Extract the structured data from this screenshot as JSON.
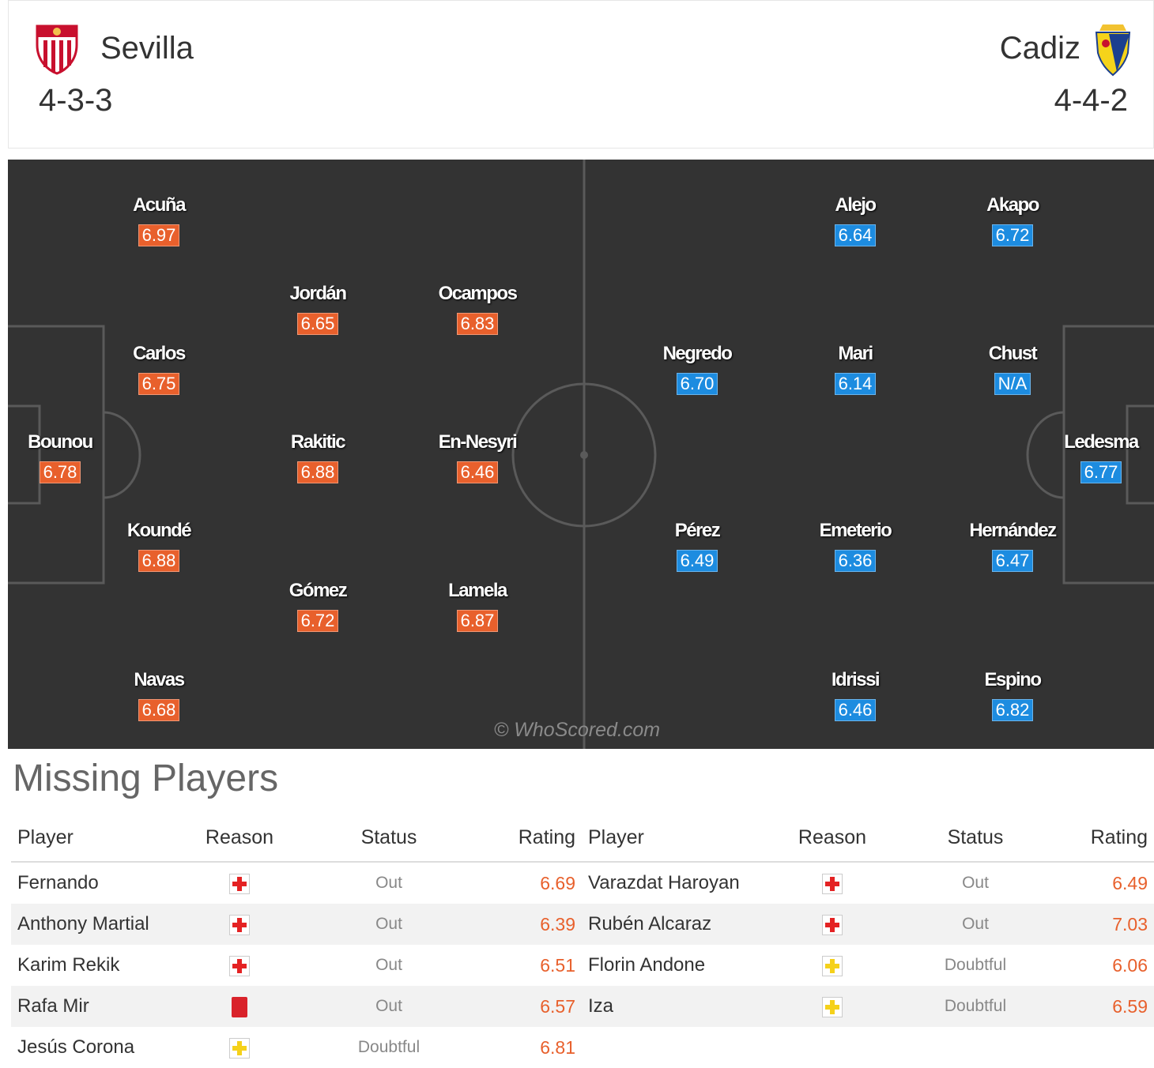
{
  "header": {
    "home": {
      "name": "Sevilla",
      "formation": "4-3-3",
      "crest_icon": "sevilla-crest-icon"
    },
    "away": {
      "name": "Cadiz",
      "formation": "4-4-2",
      "crest_icon": "cadiz-crest-icon"
    }
  },
  "pitch": {
    "watermark": "© WhoScored.com",
    "home_color": "#e8602c",
    "away_color": "#1d8ce0",
    "home_players": [
      {
        "name": "Acuña",
        "rating": "6.97"
      },
      {
        "name": "Jordán",
        "rating": "6.65"
      },
      {
        "name": "Ocampos",
        "rating": "6.83"
      },
      {
        "name": "Carlos",
        "rating": "6.75"
      },
      {
        "name": "Bounou",
        "rating": "6.78"
      },
      {
        "name": "Rakitic",
        "rating": "6.88"
      },
      {
        "name": "En-Nesyri",
        "rating": "6.46"
      },
      {
        "name": "Koundé",
        "rating": "6.88"
      },
      {
        "name": "Gómez",
        "rating": "6.72"
      },
      {
        "name": "Lamela",
        "rating": "6.87"
      },
      {
        "name": "Navas",
        "rating": "6.68"
      }
    ],
    "away_players": [
      {
        "name": "Alejo",
        "rating": "6.64"
      },
      {
        "name": "Akapo",
        "rating": "6.72"
      },
      {
        "name": "Negredo",
        "rating": "6.70"
      },
      {
        "name": "Mari",
        "rating": "6.14"
      },
      {
        "name": "Chust",
        "rating": "N/A"
      },
      {
        "name": "Ledesma",
        "rating": "6.77"
      },
      {
        "name": "Pérez",
        "rating": "6.49"
      },
      {
        "name": "Emeterio",
        "rating": "6.36"
      },
      {
        "name": "Hernández",
        "rating": "6.47"
      },
      {
        "name": "Idrissi",
        "rating": "6.46"
      },
      {
        "name": "Espino",
        "rating": "6.82"
      }
    ]
  },
  "missing": {
    "title": "Missing Players",
    "columns": [
      "Player",
      "Reason",
      "Status",
      "Rating"
    ],
    "home": [
      {
        "player": "Fernando",
        "reason_icon": "injury-icon",
        "status": "Out",
        "rating": "6.69"
      },
      {
        "player": "Anthony Martial",
        "reason_icon": "injury-icon",
        "status": "Out",
        "rating": "6.39"
      },
      {
        "player": "Karim Rekik",
        "reason_icon": "injury-icon",
        "status": "Out",
        "rating": "6.51"
      },
      {
        "player": "Rafa Mir",
        "reason_icon": "red-card-icon",
        "status": "Out",
        "rating": "6.57"
      },
      {
        "player": "Jesús Corona",
        "reason_icon": "doubtful-icon",
        "status": "Doubtful",
        "rating": "6.81"
      }
    ],
    "away": [
      {
        "player": "Varazdat Haroyan",
        "reason_icon": "injury-icon",
        "status": "Out",
        "rating": "6.49"
      },
      {
        "player": "Rubén Alcaraz",
        "reason_icon": "injury-icon",
        "status": "Out",
        "rating": "7.03"
      },
      {
        "player": "Florin Andone",
        "reason_icon": "doubtful-icon",
        "status": "Doubtful",
        "rating": "6.06"
      },
      {
        "player": "Iza",
        "reason_icon": "doubtful-icon",
        "status": "Doubtful",
        "rating": "6.59"
      }
    ]
  }
}
